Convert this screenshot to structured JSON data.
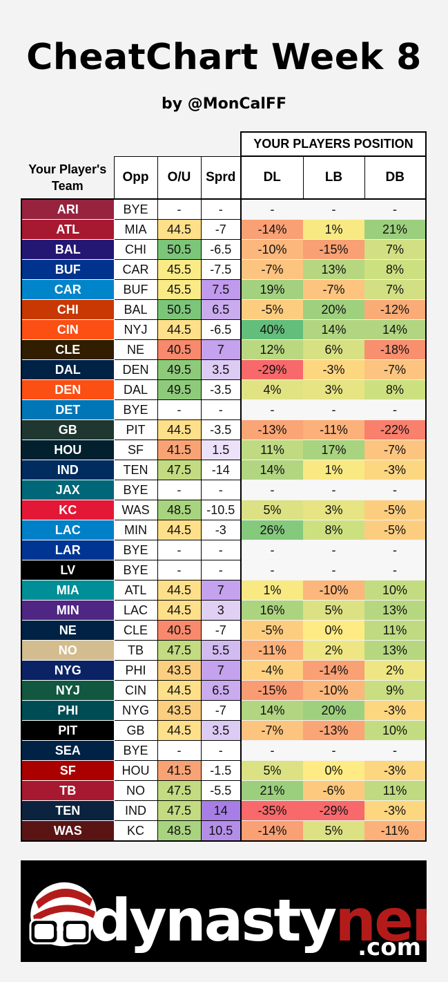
{
  "title": "CheatChart Week 8",
  "byline": "by @MonCalFF",
  "group_header": "YOUR PLAYERS POSITION",
  "columns": {
    "team": "Your Player's Team",
    "opp": "Opp",
    "ou": "O/U",
    "sprd": "Sprd",
    "dl": "DL",
    "lb": "LB",
    "db": "DB"
  },
  "rows": [
    {
      "team": "ARI",
      "team_color": "#97233f",
      "opp": "BYE",
      "ou": "-",
      "ou_color": "#ffffff",
      "sprd": "-",
      "sprd_color": "#ffffff",
      "dl": "-",
      "dl_color": "#f7f7f7",
      "lb": "-",
      "lb_color": "#f7f7f7",
      "db": "-",
      "db_color": "#f7f7f7"
    },
    {
      "team": "ATL",
      "team_color": "#a71930",
      "opp": "MIA",
      "ou": "44.5",
      "ou_color": "#ffe08a",
      "sprd": "-7",
      "sprd_color": "#ffffff",
      "dl": "-14%",
      "dl_color": "#f9a074",
      "lb": "1%",
      "lb_color": "#f8e983",
      "db": "21%",
      "db_color": "#9bcf7e"
    },
    {
      "team": "BAL",
      "team_color": "#241773",
      "opp": "CHI",
      "ou": "50.5",
      "ou_color": "#7cc67a",
      "sprd": "-6.5",
      "sprd_color": "#ffffff",
      "dl": "-10%",
      "dl_color": "#fbb77c",
      "lb": "-15%",
      "lb_color": "#f9a074",
      "db": "7%",
      "db_color": "#d2df82"
    },
    {
      "team": "BUF",
      "team_color": "#00338d",
      "opp": "CAR",
      "ou": "45.5",
      "ou_color": "#fbeb86",
      "sprd": "-7.5",
      "sprd_color": "#ffffff",
      "dl": "-7%",
      "dl_color": "#fcc47e",
      "lb": "13%",
      "lb_color": "#b6d780",
      "db": "8%",
      "db_color": "#cde080"
    },
    {
      "team": "CAR",
      "team_color": "#0085ca",
      "opp": "BUF",
      "ou": "45.5",
      "ou_color": "#fbeb86",
      "sprd": "7.5",
      "sprd_color": "#c09aec",
      "dl": "19%",
      "dl_color": "#a3d17f",
      "lb": "-7%",
      "lb_color": "#fcc47e",
      "db": "7%",
      "db_color": "#d2df82"
    },
    {
      "team": "CHI",
      "team_color": "#c83803",
      "opp": "BAL",
      "ou": "50.5",
      "ou_color": "#7cc67a",
      "sprd": "6.5",
      "sprd_color": "#c9abee",
      "dl": "-5%",
      "dl_color": "#fdcd7f",
      "lb": "20%",
      "lb_color": "#9fd07e",
      "db": "-12%",
      "db_color": "#faac77"
    },
    {
      "team": "CIN",
      "team_color": "#fb4f14",
      "opp": "NYJ",
      "ou": "44.5",
      "ou_color": "#ffe08a",
      "sprd": "-6.5",
      "sprd_color": "#ffffff",
      "dl": "40%",
      "dl_color": "#63be7b",
      "lb": "14%",
      "lb_color": "#b1d580",
      "db": "14%",
      "db_color": "#b1d580"
    },
    {
      "team": "CLE",
      "team_color": "#311d00",
      "opp": "NE",
      "ou": "40.5",
      "ou_color": "#f8896c",
      "sprd": "7",
      "sprd_color": "#c4a2ed",
      "dl": "12%",
      "dl_color": "#bad880",
      "lb": "6%",
      "lb_color": "#d7e082",
      "db": "-18%",
      "db_color": "#f88f6f"
    },
    {
      "team": "DAL",
      "team_color": "#002244",
      "opp": "DEN",
      "ou": "49.5",
      "ou_color": "#8dcb7b",
      "sprd": "3.5",
      "sprd_color": "#dccbf3",
      "dl": "-29%",
      "dl_color": "#f8696b",
      "lb": "-3%",
      "lb_color": "#fdd680",
      "db": "-7%",
      "db_color": "#fcc47e"
    },
    {
      "team": "DEN",
      "team_color": "#fb4f14",
      "opp": "DAL",
      "ou": "49.5",
      "ou_color": "#8dcb7b",
      "sprd": "-3.5",
      "sprd_color": "#ffffff",
      "dl": "4%",
      "dl_color": "#e1e383",
      "lb": "3%",
      "lb_color": "#e6e483",
      "db": "8%",
      "db_color": "#cde080"
    },
    {
      "team": "DET",
      "team_color": "#0076b6",
      "opp": "BYE",
      "ou": "-",
      "ou_color": "#ffffff",
      "sprd": "-",
      "sprd_color": "#ffffff",
      "dl": "-",
      "dl_color": "#f7f7f7",
      "lb": "-",
      "lb_color": "#f7f7f7",
      "db": "-",
      "db_color": "#f7f7f7"
    },
    {
      "team": "GB",
      "team_color": "#203731",
      "opp": "PIT",
      "ou": "44.5",
      "ou_color": "#ffe08a",
      "sprd": "-3.5",
      "sprd_color": "#ffffff",
      "dl": "-13%",
      "dl_color": "#faa575",
      "lb": "-11%",
      "lb_color": "#fbb179",
      "db": "-22%",
      "db_color": "#f8806d"
    },
    {
      "team": "HOU",
      "team_color": "#03202f",
      "opp": "SF",
      "ou": "41.5",
      "ou_color": "#f9a375",
      "sprd": "1.5",
      "sprd_color": "#ebe1f8",
      "dl": "11%",
      "dl_color": "#bfda81",
      "lb": "17%",
      "lb_color": "#a8d37f",
      "db": "-7%",
      "db_color": "#fcc47e"
    },
    {
      "team": "IND",
      "team_color": "#002c5f",
      "opp": "TEN",
      "ou": "47.5",
      "ou_color": "#c3db81",
      "sprd": "-14",
      "sprd_color": "#ffffff",
      "dl": "14%",
      "dl_color": "#b1d580",
      "lb": "1%",
      "lb_color": "#f8e983",
      "db": "-3%",
      "db_color": "#fdd680"
    },
    {
      "team": "JAX",
      "team_color": "#006778",
      "opp": "BYE",
      "ou": "-",
      "ou_color": "#ffffff",
      "sprd": "-",
      "sprd_color": "#ffffff",
      "dl": "-",
      "dl_color": "#f7f7f7",
      "lb": "-",
      "lb_color": "#f7f7f7",
      "db": "-",
      "db_color": "#f7f7f7"
    },
    {
      "team": "KC",
      "team_color": "#e31837",
      "opp": "WAS",
      "ou": "48.5",
      "ou_color": "#a8d37f",
      "sprd": "-10.5",
      "sprd_color": "#ffffff",
      "dl": "5%",
      "dl_color": "#dce183",
      "lb": "3%",
      "lb_color": "#e6e483",
      "db": "-5%",
      "db_color": "#fdcd7f"
    },
    {
      "team": "LAC",
      "team_color": "#0080c6",
      "opp": "MIN",
      "ou": "44.5",
      "ou_color": "#ffe08a",
      "sprd": "-3",
      "sprd_color": "#ffffff",
      "dl": "26%",
      "dl_color": "#85c97d",
      "lb": "8%",
      "lb_color": "#cde080",
      "db": "-5%",
      "db_color": "#fdcd7f"
    },
    {
      "team": "LAR",
      "team_color": "#003594",
      "opp": "BYE",
      "ou": "-",
      "ou_color": "#ffffff",
      "sprd": "-",
      "sprd_color": "#ffffff",
      "dl": "-",
      "dl_color": "#f7f7f7",
      "lb": "-",
      "lb_color": "#f7f7f7",
      "db": "-",
      "db_color": "#f7f7f7"
    },
    {
      "team": "LV",
      "team_color": "#000000",
      "opp": "BYE",
      "ou": "-",
      "ou_color": "#ffffff",
      "sprd": "-",
      "sprd_color": "#ffffff",
      "dl": "-",
      "dl_color": "#f7f7f7",
      "lb": "-",
      "lb_color": "#f7f7f7",
      "db": "-",
      "db_color": "#f7f7f7"
    },
    {
      "team": "MIA",
      "team_color": "#008e97",
      "opp": "ATL",
      "ou": "44.5",
      "ou_color": "#ffe08a",
      "sprd": "7",
      "sprd_color": "#c4a2ed",
      "dl": "1%",
      "dl_color": "#f8e983",
      "lb": "-10%",
      "lb_color": "#fbb77c",
      "db": "10%",
      "db_color": "#c4dc81"
    },
    {
      "team": "MIN",
      "team_color": "#4f2683",
      "opp": "LAC",
      "ou": "44.5",
      "ou_color": "#ffe08a",
      "sprd": "3",
      "sprd_color": "#e0d0f4",
      "dl": "16%",
      "dl_color": "#acd47f",
      "lb": "5%",
      "lb_color": "#dce183",
      "db": "13%",
      "db_color": "#b6d780"
    },
    {
      "team": "NE",
      "team_color": "#002244",
      "opp": "CLE",
      "ou": "40.5",
      "ou_color": "#f8896c",
      "sprd": "-7",
      "sprd_color": "#ffffff",
      "dl": "-5%",
      "dl_color": "#fdcd7f",
      "lb": "0%",
      "lb_color": "#feeb84",
      "db": "11%",
      "db_color": "#bfda81"
    },
    {
      "team": "NO",
      "team_color": "#d3bc8d",
      "opp": "TB",
      "ou": "47.5",
      "ou_color": "#c3db81",
      "sprd": "5.5",
      "sprd_color": "#d2bbf0",
      "dl": "-11%",
      "dl_color": "#fbb179",
      "lb": "2%",
      "lb_color": "#ede683",
      "db": "13%",
      "db_color": "#b6d780"
    },
    {
      "team": "NYG",
      "team_color": "#0b2265",
      "opp": "PHI",
      "ou": "43.5",
      "ou_color": "#fccf80",
      "sprd": "7",
      "sprd_color": "#c4a2ed",
      "dl": "-4%",
      "dl_color": "#fdd17f",
      "lb": "-14%",
      "lb_color": "#f9a074",
      "db": "2%",
      "db_color": "#ede683"
    },
    {
      "team": "NYJ",
      "team_color": "#125740",
      "opp": "CIN",
      "ou": "44.5",
      "ou_color": "#ffe08a",
      "sprd": "6.5",
      "sprd_color": "#c9abee",
      "dl": "-15%",
      "dl_color": "#f99c73",
      "lb": "-10%",
      "lb_color": "#fbb77c",
      "db": "9%",
      "db_color": "#c9de81"
    },
    {
      "team": "PHI",
      "team_color": "#004c54",
      "opp": "NYG",
      "ou": "43.5",
      "ou_color": "#fccf80",
      "sprd": "-7",
      "sprd_color": "#ffffff",
      "dl": "14%",
      "dl_color": "#b1d580",
      "lb": "20%",
      "lb_color": "#9fd07e",
      "db": "-3%",
      "db_color": "#fdd680"
    },
    {
      "team": "PIT",
      "team_color": "#000000",
      "opp": "GB",
      "ou": "44.5",
      "ou_color": "#ffe08a",
      "sprd": "3.5",
      "sprd_color": "#dccbf3",
      "dl": "-7%",
      "dl_color": "#fcc47e",
      "lb": "-13%",
      "lb_color": "#faa575",
      "db": "10%",
      "db_color": "#c4dc81"
    },
    {
      "team": "SEA",
      "team_color": "#002244",
      "opp": "BYE",
      "ou": "-",
      "ou_color": "#ffffff",
      "sprd": "-",
      "sprd_color": "#ffffff",
      "dl": "-",
      "dl_color": "#f7f7f7",
      "lb": "-",
      "lb_color": "#f7f7f7",
      "db": "-",
      "db_color": "#f7f7f7"
    },
    {
      "team": "SF",
      "team_color": "#aa0000",
      "opp": "HOU",
      "ou": "41.5",
      "ou_color": "#f9a375",
      "sprd": "-1.5",
      "sprd_color": "#ffffff",
      "dl": "5%",
      "dl_color": "#dce183",
      "lb": "0%",
      "lb_color": "#feeb84",
      "db": "-3%",
      "db_color": "#fdd680"
    },
    {
      "team": "TB",
      "team_color": "#a71930",
      "opp": "NO",
      "ou": "47.5",
      "ou_color": "#c3db81",
      "sprd": "-5.5",
      "sprd_color": "#ffffff",
      "dl": "21%",
      "dl_color": "#9bcf7e",
      "lb": "-6%",
      "lb_color": "#fcc97e",
      "db": "11%",
      "db_color": "#bfda81"
    },
    {
      "team": "TEN",
      "team_color": "#0c2340",
      "opp": "IND",
      "ou": "47.5",
      "ou_color": "#c3db81",
      "sprd": "14",
      "sprd_color": "#a77ee6",
      "dl": "-35%",
      "dl_color": "#f8696b",
      "lb": "-29%",
      "lb_color": "#f8696b",
      "db": "-3%",
      "db_color": "#fdd680"
    },
    {
      "team": "WAS",
      "team_color": "#5a1414",
      "opp": "KC",
      "ou": "48.5",
      "ou_color": "#a8d37f",
      "sprd": "10.5",
      "sprd_color": "#b48de9",
      "dl": "-14%",
      "dl_color": "#f9a074",
      "lb": "5%",
      "lb_color": "#dce183",
      "db": "-11%",
      "db_color": "#fbb179"
    }
  ],
  "logo": {
    "brand_part1": "dynasty",
    "brand_part2": "nerds",
    "domain": ".com",
    "brand_part1_color": "#ffffff",
    "brand_part2_color": "#b31b1b"
  }
}
